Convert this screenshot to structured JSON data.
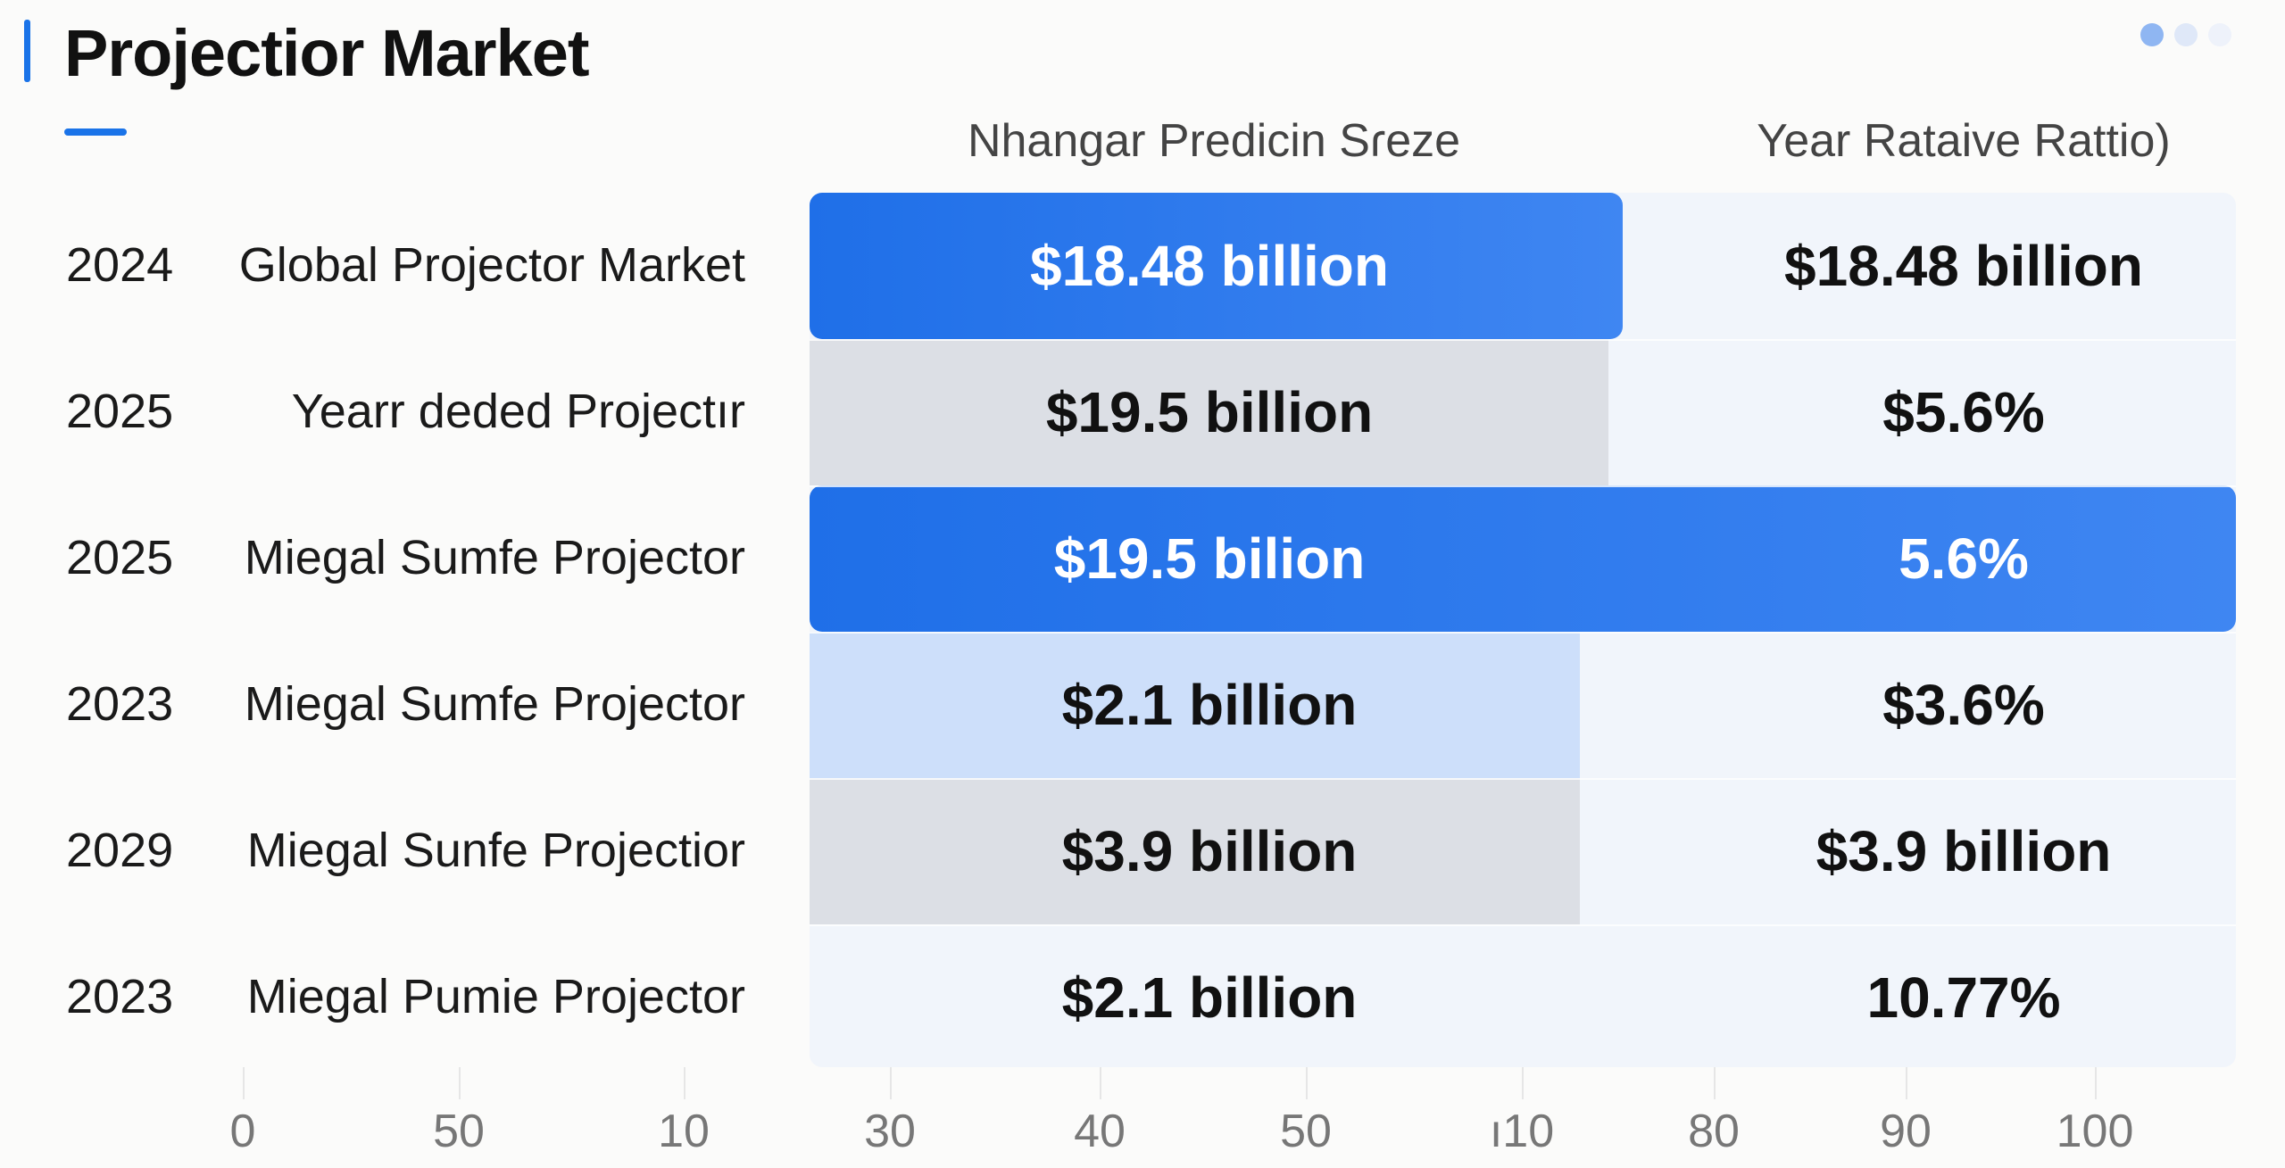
{
  "title": "Projectior Market",
  "page_dots": {
    "colors": [
      "#8fb6f2",
      "#dfe8f8",
      "#eef2fa"
    ]
  },
  "colors": {
    "accent": "#1a73e8",
    "bar_blue": "#2f7cf0",
    "bar_light": "#cfe0fb",
    "bar_grey": "#dcdfe5"
  },
  "chart_data": {
    "type": "table",
    "column_headers": [
      "Nhangar Predicin Sɾeze",
      "Year Rataive Rattio)"
    ],
    "rows": [
      {
        "year": "2024",
        "label": "Global Projector Market",
        "value": "$18.48 billion",
        "ratio": "$18.48 billion",
        "fill": 57,
        "style": "blue",
        "full_width": false
      },
      {
        "year": "2025",
        "label": "Yearr deded Projectır",
        "value": "$19.5 billion",
        "ratio": "$5.6%",
        "fill": 56,
        "style": "grey",
        "full_width": false
      },
      {
        "year": "2025",
        "label": "Miegal Sumfe Projector",
        "value": "$19.5 bilion",
        "ratio": "5.6%",
        "fill": 100,
        "style": "blue",
        "full_width": true
      },
      {
        "year": "2023",
        "label": "Miegal Sumfe Projector",
        "value": "$2.1 billion",
        "ratio": "$3.6%",
        "fill": 54,
        "style": "light",
        "full_width": false
      },
      {
        "year": "2029",
        "label": "Miegal Sunfe Projectior",
        "value": "$3.9 billion",
        "ratio": "$3.9 billion",
        "fill": 54,
        "style": "grey",
        "full_width": false
      },
      {
        "year": "2023",
        "label": "Miegal Pumie Projector",
        "value": "$2.1 billion",
        "ratio": "10.77%",
        "fill": 0,
        "style": "none",
        "full_width": false
      }
    ],
    "x_ticks": [
      "0",
      "50",
      "10",
      "30",
      "40",
      "50",
      "ı10",
      "80",
      "90",
      "100"
    ]
  }
}
